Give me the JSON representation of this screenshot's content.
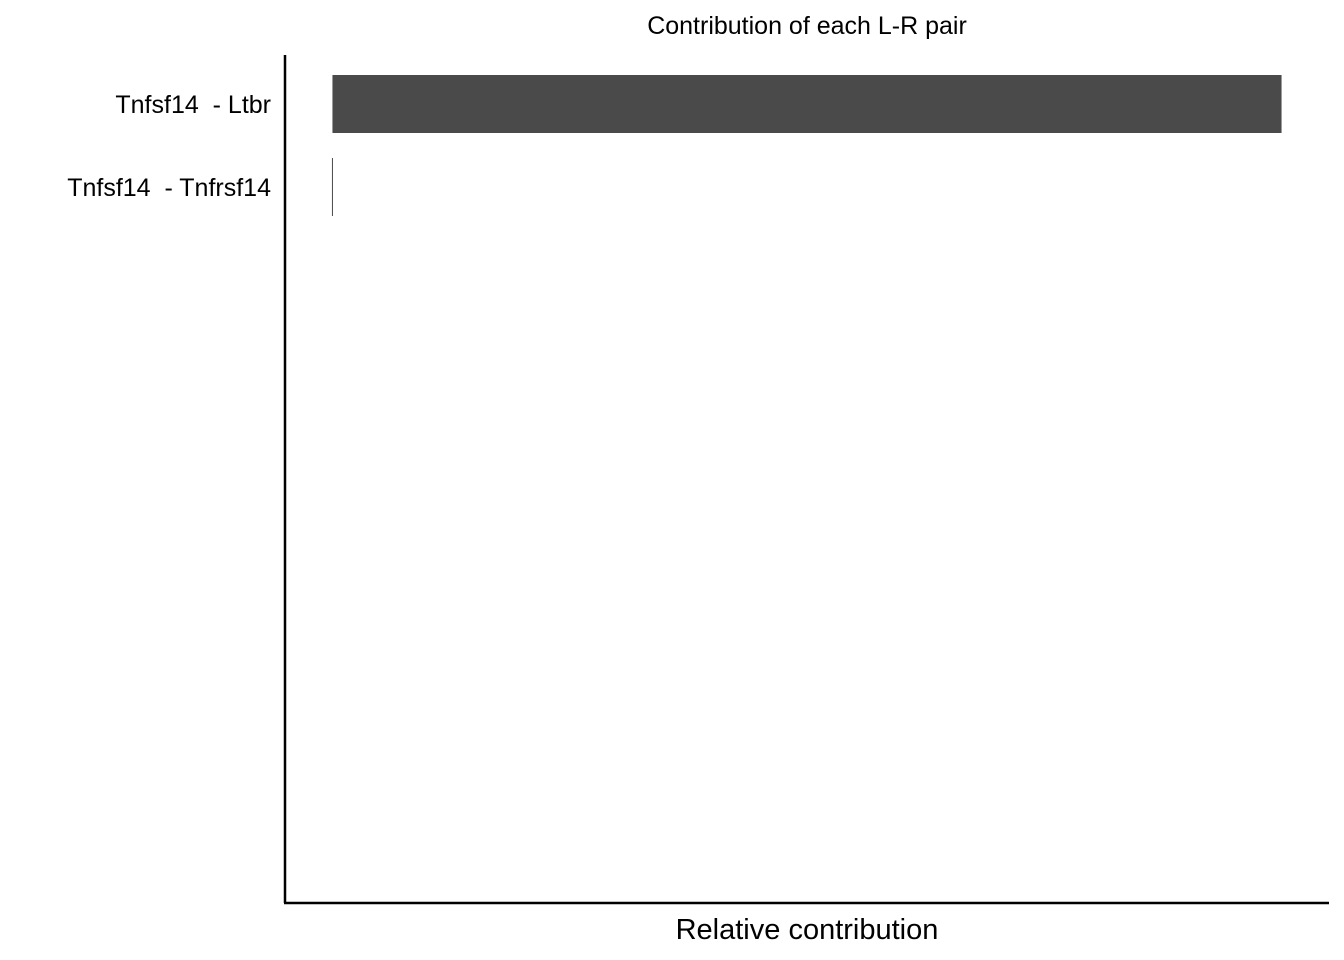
{
  "chart_data": {
    "type": "bar",
    "orientation": "horizontal",
    "title": "Contribution of each L-R pair",
    "xlabel": "Relative contribution",
    "ylabel": "",
    "categories": [
      "Tnfsf14  - Ltbr",
      "Tnfsf14  - Tnfrsf14"
    ],
    "values": [
      1.0,
      0.0
    ],
    "xlim": [
      -0.05,
      1.05
    ],
    "grid": false,
    "legend": "none",
    "bar_color": "#4a4a4a"
  }
}
